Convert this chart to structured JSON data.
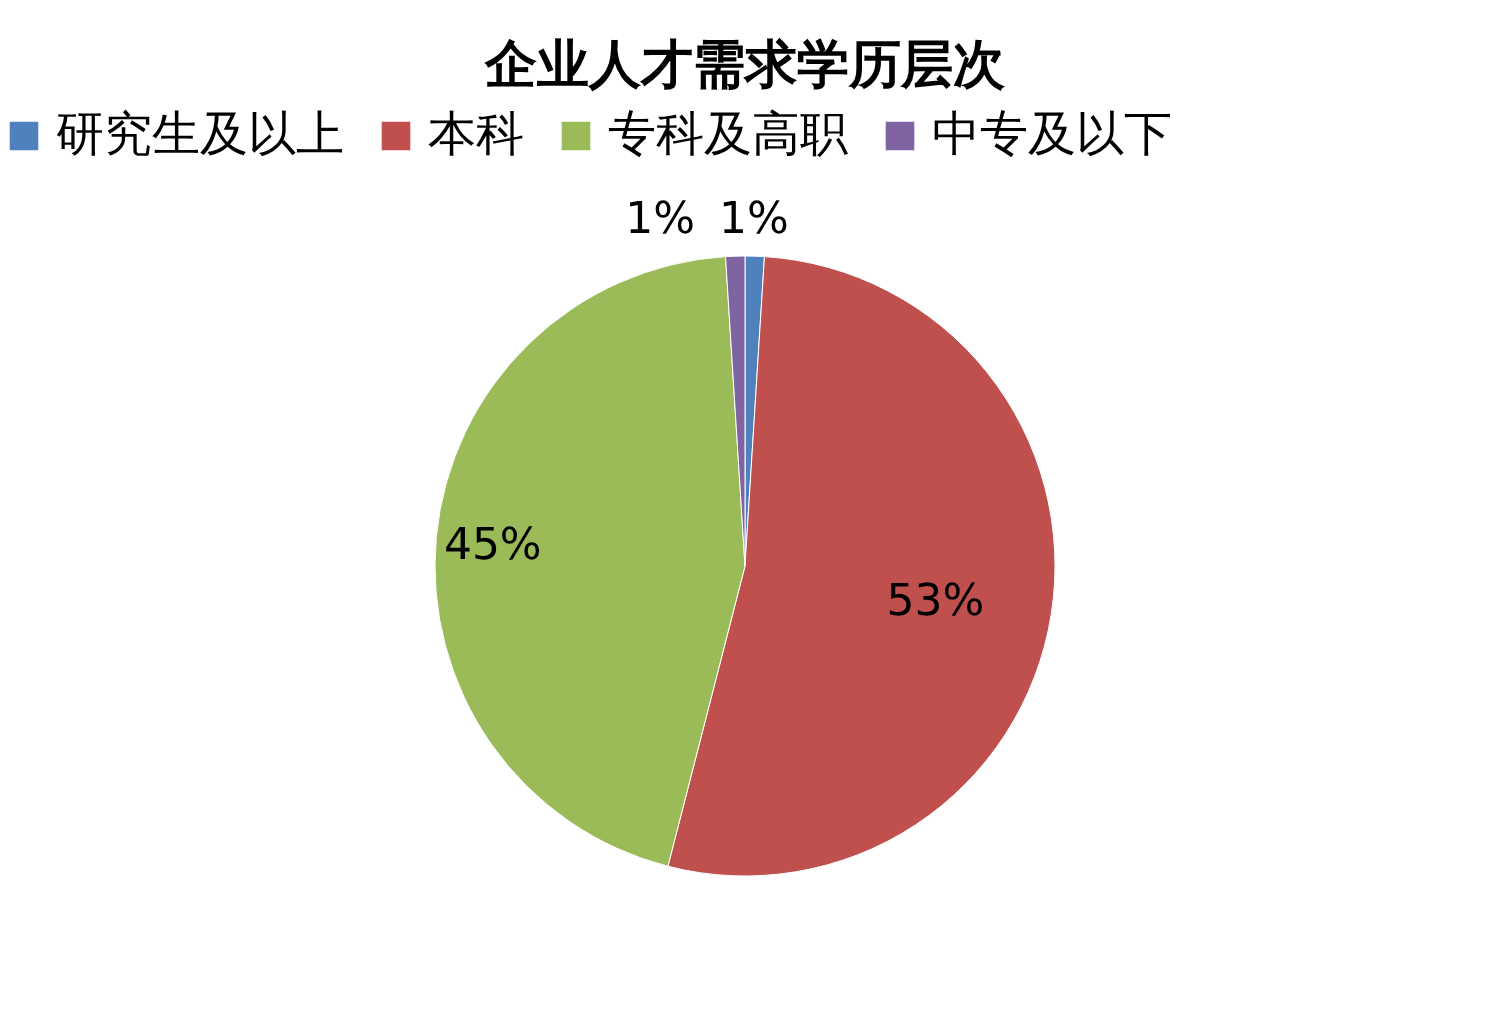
{
  "chart_data": {
    "type": "pie",
    "title": "企业人才需求学历层次",
    "categories": [
      "研究生及以上",
      "本科",
      "专科及高职",
      "中专及以下"
    ],
    "values": [
      1,
      53,
      45,
      1
    ],
    "colors": [
      "#4f81bd",
      "#c0504d",
      "#9bbb59",
      "#8064a2"
    ],
    "value_labels": [
      "1%",
      "53%",
      "45%",
      "1%"
    ],
    "legend": "top"
  }
}
